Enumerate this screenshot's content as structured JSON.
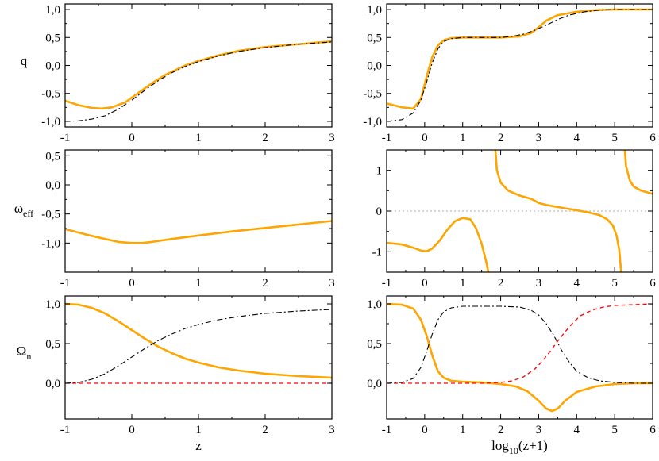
{
  "colors": {
    "orange": "#ffa500",
    "black": "#000000",
    "red": "#ff0000",
    "gray": "#bbbbbb"
  },
  "chart_data": [
    {
      "id": "q-z",
      "type": "line",
      "xlim": [
        -1,
        3
      ],
      "ylim": [
        -1.1,
        1.1
      ],
      "xticks": [
        -1,
        0,
        1,
        2,
        3
      ],
      "xtick_labels": [
        "-1",
        "0",
        "1",
        "2",
        "3"
      ],
      "yticks": [
        -1,
        -0.5,
        0,
        0.5,
        1
      ],
      "ytick_labels": [
        "-1,0",
        "-0,5",
        "0,0",
        "0,5",
        "1,0"
      ],
      "ylabel": "q",
      "xlabel": "",
      "series": [
        {
          "style": "solid",
          "color": "#ffa500",
          "x": [
            -1,
            -0.8,
            -0.6,
            -0.45,
            -0.3,
            -0.1,
            0.1,
            0.3,
            0.5,
            0.8,
            1.0,
            1.3,
            1.6,
            2.0,
            2.5,
            3.0
          ],
          "y": [
            -0.63,
            -0.71,
            -0.76,
            -0.77,
            -0.75,
            -0.66,
            -0.49,
            -0.32,
            -0.17,
            0.0,
            0.08,
            0.18,
            0.26,
            0.33,
            0.38,
            0.43
          ]
        },
        {
          "style": "dashdot",
          "color": "#000000",
          "x": [
            -1,
            -0.8,
            -0.6,
            -0.4,
            -0.2,
            0.0,
            0.2,
            0.4,
            0.6,
            0.8,
            1.0,
            1.3,
            1.6,
            2.0,
            2.5,
            3.0
          ],
          "y": [
            -1.0,
            -0.99,
            -0.96,
            -0.9,
            -0.78,
            -0.62,
            -0.44,
            -0.27,
            -0.13,
            -0.02,
            0.07,
            0.17,
            0.25,
            0.32,
            0.38,
            0.42
          ]
        }
      ]
    },
    {
      "id": "q-log",
      "type": "line",
      "xlim": [
        -1,
        6
      ],
      "ylim": [
        -1.1,
        1.1
      ],
      "xticks": [
        -1,
        0,
        1,
        2,
        3,
        4,
        5,
        6
      ],
      "xtick_labels": [
        "-1",
        "0",
        "1",
        "2",
        "3",
        "4",
        "5",
        "6"
      ],
      "yticks": [
        -1,
        -0.5,
        0,
        0.5,
        1
      ],
      "ytick_labels": [
        "-1,0",
        "-0,5",
        "0,0",
        "0,5",
        "1,0"
      ],
      "ylabel": "",
      "xlabel": "",
      "series": [
        {
          "style": "solid",
          "color": "#ffa500",
          "x": [
            -1,
            -0.6,
            -0.3,
            -0.1,
            0.05,
            0.2,
            0.35,
            0.5,
            0.7,
            1.0,
            1.5,
            2.0,
            2.5,
            2.8,
            3.0,
            3.2,
            3.5,
            4.0,
            4.5,
            5.0,
            5.5,
            6.0
          ],
          "y": [
            -0.68,
            -0.75,
            -0.77,
            -0.6,
            -0.2,
            0.15,
            0.36,
            0.45,
            0.49,
            0.5,
            0.5,
            0.5,
            0.52,
            0.58,
            0.68,
            0.8,
            0.9,
            0.96,
            0.99,
            1.0,
            1.0,
            1.0
          ]
        },
        {
          "style": "dashdot",
          "color": "#000000",
          "x": [
            -1,
            -0.6,
            -0.3,
            -0.1,
            0.05,
            0.2,
            0.35,
            0.5,
            0.7,
            1.0,
            1.5,
            2.0,
            2.3,
            2.6,
            2.9,
            3.2,
            3.5,
            3.8,
            4.2,
            4.6,
            5.0,
            6.0
          ],
          "y": [
            -1.0,
            -0.97,
            -0.85,
            -0.62,
            -0.3,
            0.05,
            0.3,
            0.43,
            0.48,
            0.5,
            0.5,
            0.5,
            0.52,
            0.56,
            0.63,
            0.72,
            0.82,
            0.9,
            0.96,
            0.99,
            1.0,
            1.0
          ]
        }
      ]
    },
    {
      "id": "w-z",
      "type": "line",
      "xlim": [
        -1,
        3
      ],
      "ylim": [
        -1.5,
        0.6
      ],
      "xticks": [
        -1,
        0,
        1,
        2,
        3
      ],
      "xtick_labels": [
        "-1",
        "0",
        "1",
        "2",
        "3"
      ],
      "yticks": [
        -1,
        -0.5,
        0,
        0.5
      ],
      "ytick_labels": [
        "-1,0",
        "-0,5",
        "0,0",
        "0,5"
      ],
      "ylabel": "ω",
      "ylabel_sub": "eff",
      "xlabel": "",
      "series": [
        {
          "style": "solid",
          "color": "#ffa500",
          "x": [
            -1,
            -0.7,
            -0.4,
            -0.2,
            0.0,
            0.15,
            0.3,
            0.6,
            1.0,
            1.5,
            2.0,
            2.5,
            3.0
          ],
          "y": [
            -0.76,
            -0.85,
            -0.93,
            -0.98,
            -1.0,
            -1.0,
            -0.98,
            -0.93,
            -0.87,
            -0.8,
            -0.74,
            -0.68,
            -0.62
          ]
        }
      ]
    },
    {
      "id": "w-log",
      "type": "line",
      "xlim": [
        -1,
        6
      ],
      "ylim": [
        -1.5,
        1.5
      ],
      "xticks": [
        -1,
        0,
        1,
        2,
        3,
        4,
        5,
        6
      ],
      "xtick_labels": [
        "-1",
        "0",
        "1",
        "2",
        "3",
        "4",
        "5",
        "6"
      ],
      "yticks": [
        -1,
        0,
        1
      ],
      "ytick_labels": [
        "-1",
        "0",
        "1"
      ],
      "ylabel": "",
      "xlabel": "",
      "hlines": [
        {
          "y": 0,
          "style": "dotted",
          "color": "#bbbbbb"
        }
      ],
      "series": [
        {
          "style": "solid",
          "color": "#ffa500",
          "x": [
            -1,
            -0.6,
            -0.3,
            -0.1,
            0.05,
            0.2,
            0.4,
            0.6,
            0.8,
            1.0,
            1.2,
            1.35,
            1.5,
            1.62,
            1.7,
            1.76,
            1.79
          ],
          "y": [
            -0.78,
            -0.82,
            -0.9,
            -0.97,
            -0.99,
            -0.92,
            -0.72,
            -0.45,
            -0.25,
            -0.17,
            -0.2,
            -0.42,
            -0.8,
            -1.25,
            -1.6,
            -2.0,
            -3.0
          ]
        },
        {
          "style": "solid",
          "color": "#ffa500",
          "x": [
            1.81,
            1.84,
            1.9,
            2.0,
            2.2,
            2.5,
            2.8,
            3.0,
            3.2,
            3.5,
            3.8,
            4.0,
            4.3,
            4.6,
            4.8,
            4.95,
            5.05,
            5.12,
            5.18,
            5.21
          ],
          "y": [
            3.0,
            1.8,
            1.0,
            0.7,
            0.5,
            0.38,
            0.3,
            0.2,
            0.15,
            0.1,
            0.05,
            0.02,
            -0.03,
            -0.1,
            -0.2,
            -0.35,
            -0.6,
            -0.95,
            -1.6,
            -3.0
          ]
        },
        {
          "style": "solid",
          "color": "#ffa500",
          "x": [
            5.23,
            5.26,
            5.3,
            5.4,
            5.5,
            5.7,
            6.0
          ],
          "y": [
            3.0,
            1.6,
            1.1,
            0.75,
            0.6,
            0.5,
            0.42
          ]
        }
      ]
    },
    {
      "id": "omega-z",
      "type": "line",
      "xlim": [
        -1,
        3
      ],
      "ylim": [
        -0.45,
        1.1
      ],
      "xticks": [
        -1,
        0,
        1,
        2,
        3
      ],
      "xtick_labels": [
        "-1",
        "0",
        "1",
        "2",
        "3"
      ],
      "yticks": [
        0,
        0.5,
        1
      ],
      "ytick_labels": [
        "0,0",
        "0,5",
        "1,0"
      ],
      "ylabel": "Ω",
      "ylabel_sub": "n",
      "xlabel": "z",
      "series": [
        {
          "style": "solid",
          "color": "#ffa500",
          "x": [
            -1,
            -0.8,
            -0.6,
            -0.4,
            -0.2,
            0.0,
            0.2,
            0.4,
            0.6,
            0.8,
            1.0,
            1.3,
            1.6,
            2.0,
            2.5,
            3.0
          ],
          "y": [
            1.0,
            0.99,
            0.95,
            0.88,
            0.78,
            0.67,
            0.56,
            0.46,
            0.38,
            0.31,
            0.26,
            0.2,
            0.16,
            0.12,
            0.09,
            0.07
          ]
        },
        {
          "style": "dashdot",
          "color": "#000000",
          "x": [
            -1,
            -0.8,
            -0.6,
            -0.4,
            -0.2,
            0.0,
            0.2,
            0.4,
            0.6,
            0.8,
            1.0,
            1.3,
            1.6,
            2.0,
            2.5,
            3.0
          ],
          "y": [
            0.0,
            0.01,
            0.05,
            0.12,
            0.22,
            0.33,
            0.44,
            0.54,
            0.62,
            0.69,
            0.74,
            0.8,
            0.84,
            0.88,
            0.91,
            0.93
          ]
        },
        {
          "style": "dashed",
          "color": "#ff0000",
          "x": [
            -1,
            3
          ],
          "y": [
            0.0,
            0.0
          ]
        }
      ]
    },
    {
      "id": "omega-log",
      "type": "line",
      "xlim": [
        -1,
        6
      ],
      "ylim": [
        -0.45,
        1.1
      ],
      "xticks": [
        -1,
        0,
        1,
        2,
        3,
        4,
        5,
        6
      ],
      "xtick_labels": [
        "-1",
        "0",
        "1",
        "2",
        "3",
        "4",
        "5",
        "6"
      ],
      "yticks": [
        0,
        0.5,
        1
      ],
      "ytick_labels": [
        "0,0",
        "0,5",
        "1,0"
      ],
      "ylabel": "",
      "xlabel": "log",
      "xlabel_sub": "10",
      "xlabel_suffix": "(z+1)",
      "series": [
        {
          "style": "solid",
          "color": "#ffa500",
          "x": [
            -1,
            -0.6,
            -0.3,
            -0.1,
            0.05,
            0.2,
            0.35,
            0.5,
            0.7,
            1.0,
            1.5,
            2.0,
            2.4,
            2.7,
            3.0,
            3.2,
            3.35,
            3.5,
            3.7,
            4.0,
            4.5,
            5.0,
            5.5,
            6.0
          ],
          "y": [
            1.0,
            0.99,
            0.94,
            0.8,
            0.6,
            0.35,
            0.15,
            0.07,
            0.03,
            0.02,
            0.01,
            -0.01,
            -0.04,
            -0.1,
            -0.22,
            -0.32,
            -0.35,
            -0.32,
            -0.22,
            -0.11,
            -0.04,
            -0.01,
            0.0,
            0.0
          ]
        },
        {
          "style": "dashdot",
          "color": "#000000",
          "x": [
            -1,
            -0.6,
            -0.3,
            -0.1,
            0.05,
            0.2,
            0.35,
            0.5,
            0.7,
            1.0,
            1.5,
            2.0,
            2.5,
            2.8,
            3.0,
            3.2,
            3.4,
            3.6,
            3.8,
            4.0,
            4.3,
            4.6,
            5.0,
            5.5,
            6.0
          ],
          "y": [
            0.0,
            0.01,
            0.06,
            0.2,
            0.4,
            0.62,
            0.8,
            0.9,
            0.95,
            0.97,
            0.97,
            0.97,
            0.96,
            0.92,
            0.86,
            0.75,
            0.6,
            0.42,
            0.27,
            0.15,
            0.07,
            0.03,
            0.01,
            0.0,
            0.0
          ]
        },
        {
          "style": "dashed",
          "color": "#ff0000",
          "x": [
            -1,
            0.0,
            0.5,
            1.0,
            1.5,
            2.0,
            2.3,
            2.6,
            2.9,
            3.1,
            3.3,
            3.5,
            3.7,
            3.9,
            4.1,
            4.4,
            4.7,
            5.0,
            5.5,
            6.0
          ],
          "y": [
            0.0,
            0.0,
            0.0,
            0.0,
            0.0,
            0.01,
            0.03,
            0.08,
            0.18,
            0.28,
            0.4,
            0.53,
            0.65,
            0.76,
            0.85,
            0.92,
            0.96,
            0.98,
            0.99,
            1.0
          ]
        }
      ]
    }
  ]
}
